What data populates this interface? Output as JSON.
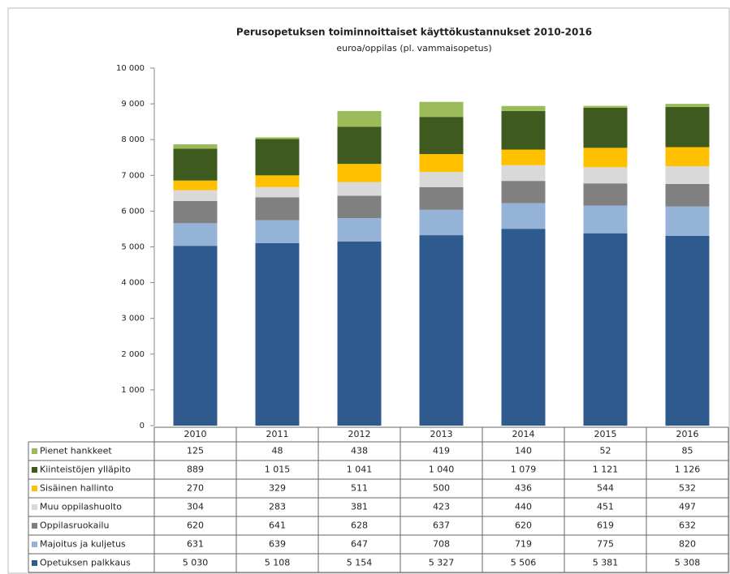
{
  "chart_data": {
    "type": "stacked_bar",
    "title": "Perusopetuksen toiminnoittaiset käyttökustannukset 2010-2016",
    "subtitle": "euroa/oppilas (pl. vammaisopetus)",
    "categories": [
      "2010",
      "2011",
      "2012",
      "2013",
      "2014",
      "2015",
      "2016"
    ],
    "ylim": [
      0,
      10000
    ],
    "yticks": [
      0,
      {
        "value": 1000,
        "label": "1 000"
      },
      {
        "value": 2000,
        "label": "2 000"
      },
      {
        "value": 3000,
        "label": "3 000"
      },
      {
        "value": 4000,
        "label": "4 000"
      },
      {
        "value": 5000,
        "label": "5 000"
      },
      {
        "value": 6000,
        "label": "6 000"
      },
      {
        "value": 7000,
        "label": "7 000"
      },
      {
        "value": 8000,
        "label": "8 000"
      },
      {
        "value": 9000,
        "label": "9 000"
      },
      {
        "value": 10000,
        "label": "10 000"
      }
    ],
    "grid": false,
    "series": [
      {
        "name": "Opetuksen palkkaus",
        "color": "#2f5a8e",
        "values": [
          5030,
          5108,
          5154,
          5327,
          5506,
          5381,
          5308
        ],
        "value_labels": [
          "5 030",
          "5 108",
          "5 154",
          "5 327",
          "5 506",
          "5 381",
          "5 308"
        ]
      },
      {
        "name": "Majoitus ja kuljetus",
        "color": "#95b3d7",
        "values": [
          631,
          639,
          647,
          708,
          719,
          775,
          820
        ]
      },
      {
        "name": "Oppilasruokailu",
        "color": "#808080",
        "values": [
          620,
          641,
          628,
          637,
          620,
          619,
          632
        ]
      },
      {
        "name": "Muu oppilashuolto",
        "color": "#d9d9d9",
        "values": [
          304,
          283,
          381,
          423,
          440,
          451,
          497
        ]
      },
      {
        "name": "Sisäinen hallinto",
        "color": "#ffc000",
        "values": [
          270,
          329,
          511,
          500,
          436,
          544,
          532
        ]
      },
      {
        "name": "Kiinteistöjen ylläpito",
        "color": "#3f5a1f",
        "values": [
          889,
          1015,
          1041,
          1040,
          1079,
          1121,
          1126
        ],
        "value_labels": [
          "889",
          "1 015",
          "1 041",
          "1 040",
          "1 079",
          "1 121",
          "1 126"
        ]
      },
      {
        "name": "Pienet hankkeet",
        "color": "#9bbb59",
        "values": [
          125,
          48,
          438,
          419,
          140,
          52,
          85
        ]
      }
    ]
  }
}
